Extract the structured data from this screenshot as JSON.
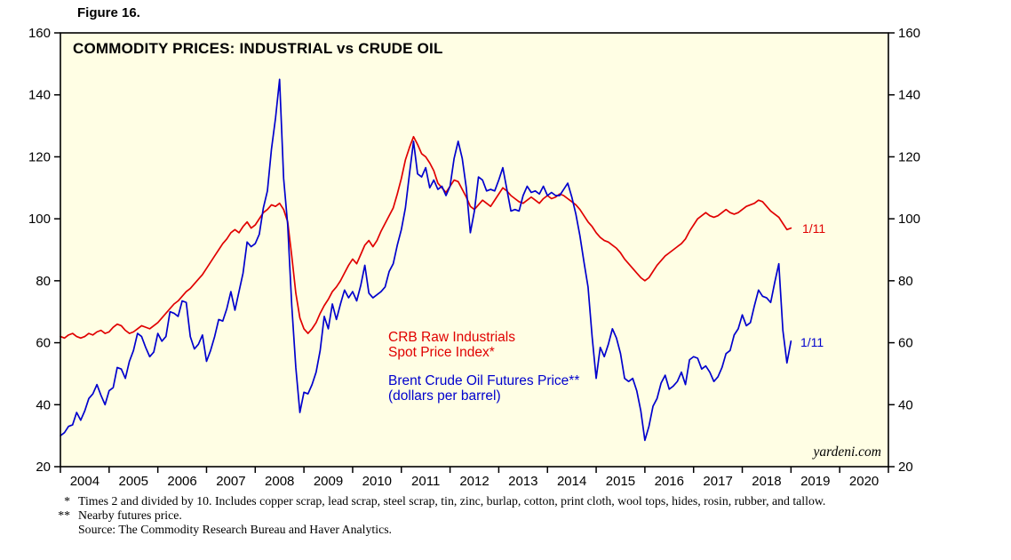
{
  "figure": {
    "label": "Figure 16."
  },
  "chart": {
    "title": "COMMODITY PRICES: INDUSTRIAL vs CRUDE OIL",
    "watermark": "yardeni.com",
    "legend": {
      "series1_line1": "CRB Raw Industrials",
      "series1_line2": "Spot Price Index*",
      "series2_line1": "Brent Crude Oil Futures Price**",
      "series2_line2": "(dollars per barrel)"
    },
    "end_labels": {
      "series1": "1/11",
      "series2": "1/11"
    }
  },
  "chart_data": {
    "type": "line",
    "title": "COMMODITY PRICES: INDUSTRIAL vs CRUDE OIL",
    "x_domain": [
      2004,
      2021
    ],
    "ylim": [
      20,
      160
    ],
    "x_start": 2004.0,
    "x_step": 0.0833333,
    "grid": "off",
    "legend_position": "inside-center-left",
    "colors": {
      "plot_background": "#fffee4",
      "axis": "#000000",
      "series1": "#e00000",
      "series2": "#0000cd"
    },
    "y_axis": {
      "ticks": [
        20,
        40,
        60,
        80,
        100,
        120,
        140,
        160
      ],
      "sides": "both"
    },
    "x_axis": {
      "labels": [
        "2004",
        "2005",
        "2006",
        "2007",
        "2008",
        "2009",
        "2010",
        "2011",
        "2012",
        "2013",
        "2014",
        "2015",
        "2016",
        "2017",
        "2018",
        "2019",
        "2020"
      ]
    },
    "series": [
      {
        "name": "CRB Raw Industrials Spot Price Index (times 2, divided by 10)",
        "color": "#e00000",
        "end_value": 97,
        "end_date_label": "1/11",
        "values": [
          62,
          61.5,
          62.5,
          63,
          62,
          61.5,
          62,
          63,
          62.5,
          63.5,
          64,
          63,
          63.5,
          65,
          66,
          65.5,
          64,
          63,
          63.5,
          64.5,
          65.5,
          65,
          64.5,
          65.5,
          66.5,
          68,
          69.5,
          71,
          72.5,
          73.5,
          75,
          76.5,
          77.5,
          79,
          80.5,
          82,
          84,
          86,
          88,
          90,
          92,
          93.5,
          95.5,
          96.5,
          95.5,
          97.5,
          99,
          97,
          98,
          100,
          102,
          103,
          104.5,
          104,
          105,
          103,
          99,
          88,
          76,
          68,
          64.5,
          63,
          64.5,
          66.5,
          69.5,
          72,
          74,
          76.5,
          78,
          80,
          82.5,
          85,
          87,
          85.5,
          88.5,
          91.5,
          93,
          91,
          93,
          96,
          98.5,
          101,
          103.5,
          108,
          113,
          119,
          123,
          126.5,
          124,
          121,
          120,
          118,
          115.5,
          111.5,
          110,
          108.5,
          110.5,
          112.5,
          112,
          109.5,
          107,
          104,
          103,
          104.5,
          106,
          105,
          104,
          106,
          108,
          110,
          109,
          107.5,
          106.5,
          105.5,
          105,
          106,
          107,
          106,
          105,
          106.5,
          107.5,
          106.5,
          107,
          108,
          107.5,
          106.5,
          105.5,
          104.5,
          103,
          101,
          99,
          97.5,
          95.5,
          94,
          93,
          92.5,
          91.5,
          90.5,
          89,
          87,
          85.5,
          84,
          82.5,
          81,
          80,
          81,
          83,
          85,
          86.5,
          88,
          89,
          90,
          91,
          92,
          93.5,
          96,
          98,
          100,
          101,
          102,
          101,
          100.5,
          101,
          102,
          103,
          102,
          101.5,
          102,
          103,
          104,
          104.5,
          105,
          106,
          105.5,
          104,
          102.5,
          101.5,
          100.5,
          98.5,
          96.5,
          97
        ]
      },
      {
        "name": "Brent Crude Oil Futures Price (dollars per barrel)",
        "color": "#0000cd",
        "end_value": 60.5,
        "end_date_label": "1/11",
        "values": [
          30,
          31,
          33,
          33.5,
          37.5,
          35,
          38,
          42,
          43.5,
          46.5,
          43,
          40,
          44.5,
          45.5,
          52,
          51.5,
          48.5,
          54,
          57.5,
          63,
          62,
          58.5,
          55.5,
          57,
          63,
          60.5,
          62,
          70,
          69.5,
          68.5,
          73.5,
          73,
          62,
          58,
          59.5,
          62.5,
          54,
          57.5,
          62,
          67.5,
          67,
          71,
          76.5,
          70.5,
          76.5,
          82.5,
          92.5,
          91,
          92,
          95,
          103.5,
          109,
          122.5,
          132.5,
          145,
          113,
          98,
          72,
          52,
          37.5,
          44,
          43.5,
          46.5,
          50.5,
          57.5,
          68.5,
          64.5,
          72.5,
          67.5,
          72.5,
          77,
          74.5,
          76.5,
          73.5,
          78.5,
          85,
          76,
          74.5,
          75.5,
          76.5,
          78,
          83,
          85.5,
          91.5,
          96.5,
          103.5,
          114.5,
          125,
          114.5,
          113.5,
          116.5,
          110,
          112.5,
          109.5,
          110.5,
          107.5,
          110.5,
          119.5,
          125,
          119.5,
          110,
          95.5,
          102.5,
          113.5,
          112.5,
          109,
          109.5,
          109,
          112.5,
          116.5,
          109.5,
          102.5,
          103,
          102.5,
          107.5,
          110.5,
          108.5,
          109,
          108,
          110.5,
          107.5,
          108.5,
          107.5,
          107.5,
          109.5,
          111.5,
          107,
          101.5,
          94.5,
          86,
          78,
          62,
          48.5,
          58.5,
          55.5,
          59.5,
          64.5,
          61.5,
          56.5,
          48.5,
          47.5,
          48.5,
          44.5,
          38,
          28.5,
          33,
          39.5,
          42,
          47,
          49.5,
          45,
          46,
          47.5,
          50.5,
          46.5,
          54.5,
          55.5,
          55,
          51.5,
          52.5,
          50.5,
          47.5,
          49,
          52,
          56.5,
          57.5,
          62.5,
          64.5,
          69,
          65.5,
          66.5,
          72,
          77,
          75,
          74.5,
          73,
          79.5,
          85.5,
          64,
          53.5,
          60.5
        ]
      }
    ]
  },
  "footnotes": {
    "star1_symbol": "*",
    "star1_text": "Times 2 and divided by 10. Includes copper scrap, lead scrap, steel scrap, tin, zinc, burlap, cotton, print cloth, wool tops, hides, rosin, rubber, and tallow.",
    "star2_symbol": "**",
    "star2_text": "Nearby futures price.",
    "source": "Source: The Commodity Research Bureau and Haver Analytics."
  }
}
